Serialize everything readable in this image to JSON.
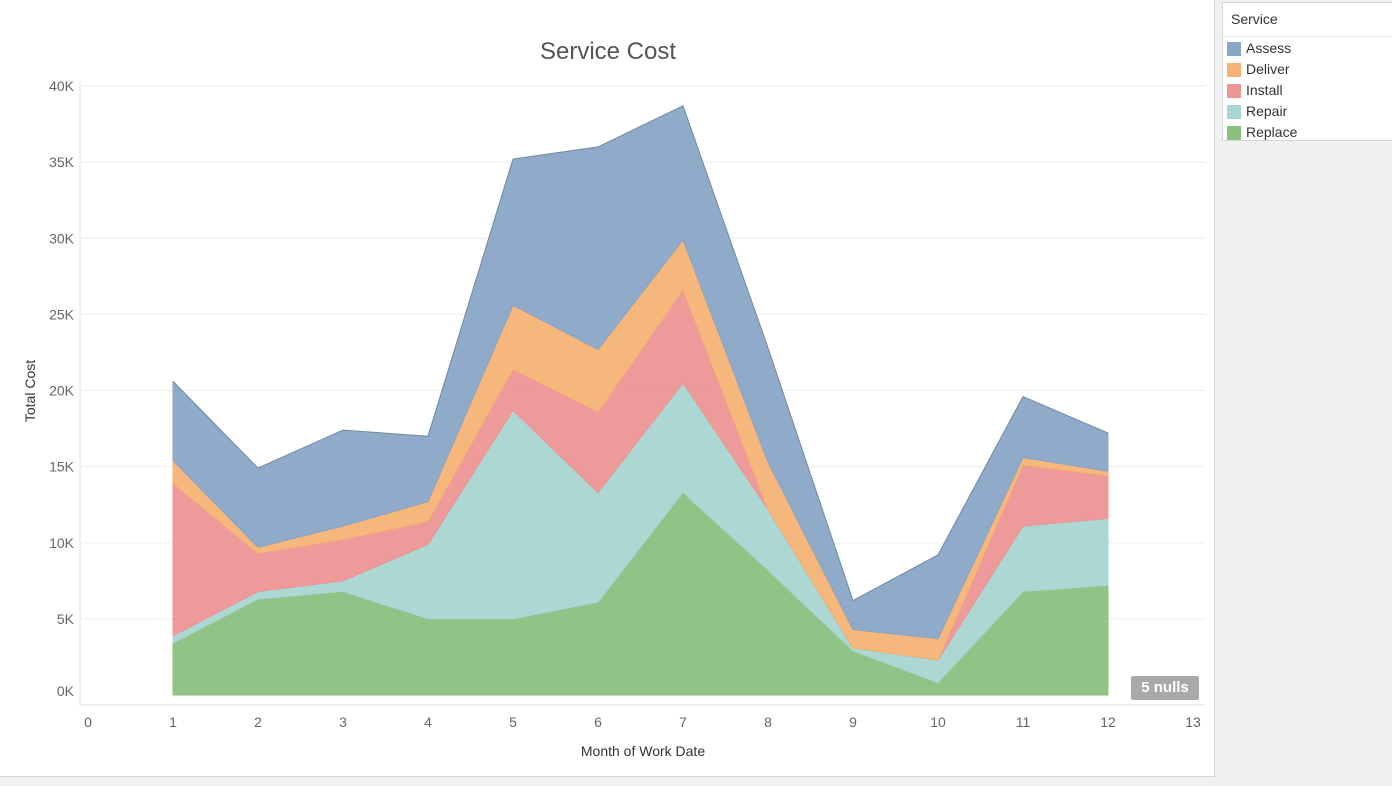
{
  "chart_data": {
    "type": "area",
    "stacked": true,
    "title": "Service Cost",
    "xlabel": "Month of Work Date",
    "ylabel": "Total Cost",
    "xlim": [
      0,
      13
    ],
    "ylim": [
      0,
      40000
    ],
    "x_ticks": [
      "0",
      "1",
      "2",
      "3",
      "4",
      "5",
      "6",
      "7",
      "8",
      "9",
      "10",
      "11",
      "12",
      "13"
    ],
    "y_ticks": [
      "0K",
      "5K",
      "10K",
      "15K",
      "20K",
      "25K",
      "30K",
      "35K",
      "40K"
    ],
    "grid": "horizontal",
    "legend_position": "right",
    "x": [
      1,
      2,
      3,
      4,
      5,
      6,
      7,
      8,
      9,
      10,
      11,
      12
    ],
    "series": [
      {
        "name": "Replace",
        "color": "#8cc07f",
        "values": [
          3400,
          6300,
          6800,
          5000,
          5000,
          6100,
          13300,
          8200,
          2900,
          800,
          6800,
          7200
        ]
      },
      {
        "name": "Repair",
        "color": "#a8d5d1",
        "values": [
          500,
          500,
          700,
          4900,
          13700,
          7200,
          7200,
          4000,
          200,
          1500,
          4300,
          4400
        ]
      },
      {
        "name": "Install",
        "color": "#ee9595",
        "values": [
          10000,
          2500,
          2700,
          1500,
          2700,
          5300,
          6100,
          0,
          0,
          0,
          4000,
          2800
        ]
      },
      {
        "name": "Deliver",
        "color": "#f5b375",
        "values": [
          1500,
          400,
          900,
          1300,
          4200,
          4100,
          3300,
          3100,
          1200,
          1400,
          500,
          300
        ]
      },
      {
        "name": "Assess",
        "color": "#8aa6c6",
        "values": [
          5200,
          5200,
          6300,
          4300,
          9600,
          13300,
          8800,
          7500,
          1900,
          5500,
          4000,
          2500
        ]
      }
    ],
    "null_count_label": "5 nulls"
  },
  "legend": {
    "title": "Service",
    "items": [
      {
        "label": "Assess",
        "color": "#8aa6c6"
      },
      {
        "label": "Deliver",
        "color": "#f5b375"
      },
      {
        "label": "Install",
        "color": "#ee9595"
      },
      {
        "label": "Repair",
        "color": "#a8d5d1"
      },
      {
        "label": "Replace",
        "color": "#8cc07f"
      }
    ]
  }
}
